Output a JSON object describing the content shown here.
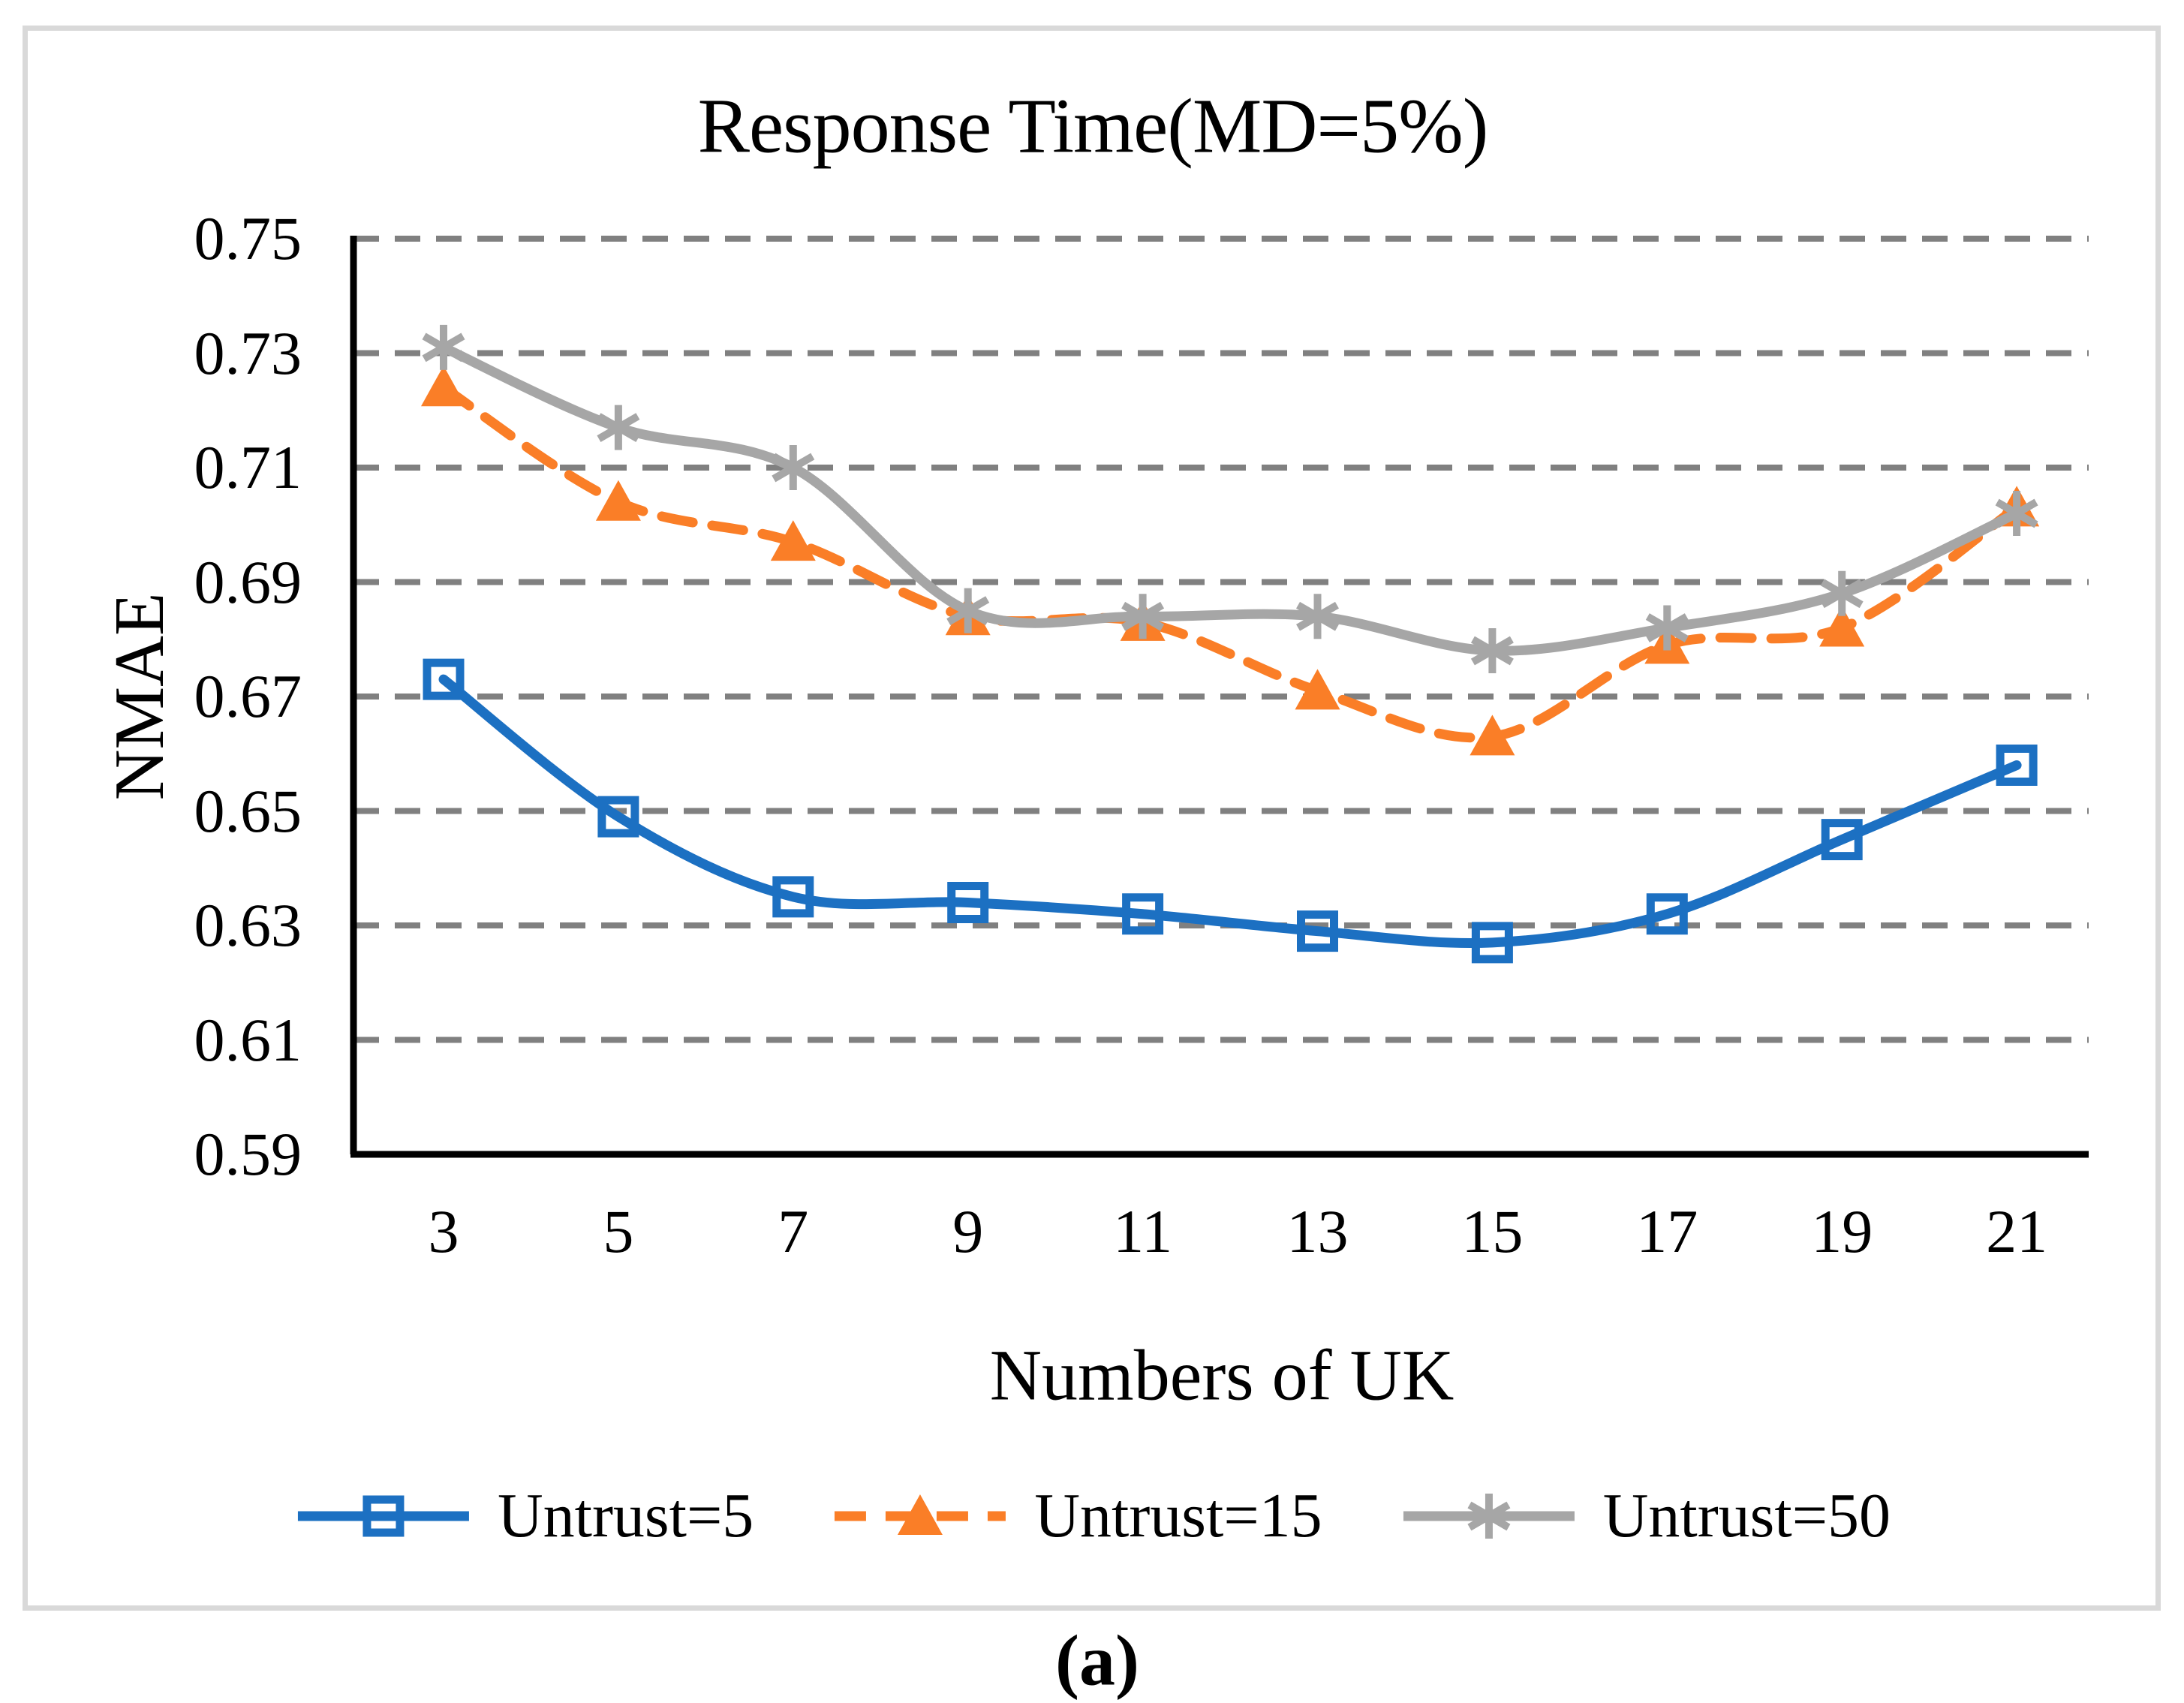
{
  "figure": {
    "caption": "(a)",
    "frame_color": "#D9D9D9",
    "background_color": "#FFFFFF",
    "text_color": "#000000"
  },
  "chart_data": {
    "type": "line",
    "title": "Response Time(MD=5%)",
    "xlabel": "Numbers of UK",
    "ylabel": "NMAE",
    "categories": [
      3,
      5,
      7,
      9,
      11,
      13,
      15,
      17,
      19,
      21
    ],
    "x_tick_labels": [
      "3",
      "5",
      "7",
      "9",
      "11",
      "13",
      "15",
      "17",
      "19",
      "21"
    ],
    "y_tick_labels": [
      "0.75",
      "0.73",
      "0.71",
      "0.69",
      "0.67",
      "0.65",
      "0.63",
      "0.61",
      "0.59"
    ],
    "ylim": [
      0.59,
      0.75
    ],
    "y_step": 0.02,
    "grid": "horizontal-dashed",
    "grid_color": "#808080",
    "axis_color": "#000000",
    "legend_position": "bottom",
    "line_smoothing": true,
    "series": [
      {
        "name": "Untrust=5",
        "color": "#1C70C2",
        "line_style": "solid",
        "marker": "open-square",
        "values": [
          0.673,
          0.649,
          0.635,
          0.634,
          0.632,
          0.629,
          0.627,
          0.632,
          0.645,
          0.658
        ]
      },
      {
        "name": "Untrust=15",
        "color": "#FA7E27",
        "line_style": "dashed",
        "marker": "filled-triangle",
        "values": [
          0.724,
          0.704,
          0.697,
          0.684,
          0.683,
          0.671,
          0.663,
          0.679,
          0.682,
          0.703
        ]
      },
      {
        "name": "Untrust=50",
        "color": "#A6A6A6",
        "line_style": "solid",
        "marker": "asterisk",
        "values": [
          0.731,
          0.717,
          0.71,
          0.685,
          0.684,
          0.684,
          0.678,
          0.682,
          0.688,
          0.702
        ]
      }
    ]
  }
}
